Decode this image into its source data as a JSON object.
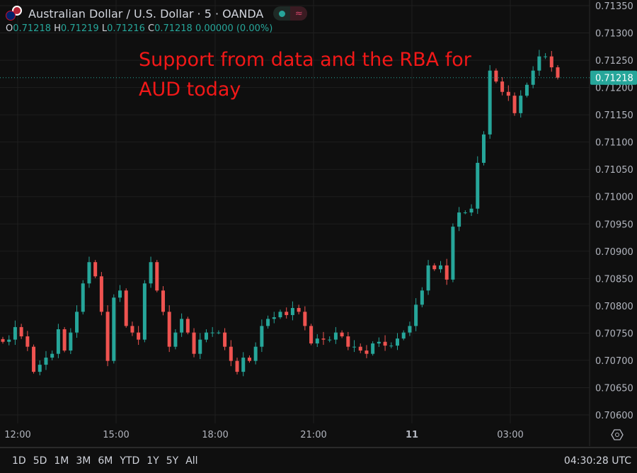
{
  "header": {
    "title": "Australian Dollar / U.S. Dollar · 5 · OANDA",
    "status_icon": "market-open-dot",
    "wave_icon": "≈",
    "ohlc": {
      "o_label": "O",
      "o": "0.71218",
      "h_label": "H",
      "h": "0.71219",
      "l_label": "L",
      "l": "0.71216",
      "c_label": "C",
      "c": "0.71218",
      "change": "0.00000 (0.00%)"
    }
  },
  "annotation": {
    "line1": "Support from data and the RBA for",
    "line2": "AUD today"
  },
  "colors": {
    "up": "#26a69a",
    "down": "#ef5350",
    "background": "#0f0f0f",
    "grid": "#1f1f1f",
    "annotation": "#f21818"
  },
  "chart_data": {
    "type": "candlestick",
    "symbol": "AUDUSD",
    "interval": "5",
    "ylim": [
      0.706,
      0.7135
    ],
    "price_ticks": [
      "0.71350",
      "0.71300",
      "0.71250",
      "0.71200",
      "0.71150",
      "0.71100",
      "0.71050",
      "0.71000",
      "0.70950",
      "0.70900",
      "0.70850",
      "0.70800",
      "0.70750",
      "0.70700",
      "0.70650",
      "0.70600"
    ],
    "time_ticks": [
      "12:00",
      "15:00",
      "18:00",
      "21:00",
      "11",
      "03:00"
    ],
    "last_price": "0.71218",
    "closes": [
      0.70734,
      0.70738,
      0.70761,
      0.70744,
      0.70725,
      0.70679,
      0.70692,
      0.70705,
      0.70712,
      0.70757,
      0.70718,
      0.70751,
      0.70789,
      0.70841,
      0.7088,
      0.70854,
      0.70789,
      0.70699,
      0.70815,
      0.70828,
      0.70763,
      0.70751,
      0.70738,
      0.70841,
      0.7088,
      0.70828,
      0.70789,
      0.70725,
      0.70751,
      0.70776,
      0.70751,
      0.70712,
      0.70738,
      0.70751,
      0.70751,
      0.70751,
      0.70725,
      0.70699,
      0.70679,
      0.70705,
      0.70699,
      0.70725,
      0.70763,
      0.70776,
      0.70779,
      0.70789,
      0.70783,
      0.70796,
      0.70789,
      0.70763,
      0.70731,
      0.7074,
      0.70738,
      0.70738,
      0.70751,
      0.70744,
      0.70725,
      0.70725,
      0.70718,
      0.70712,
      0.70731,
      0.70734,
      0.70727,
      0.70727,
      0.7074,
      0.70751,
      0.70763,
      0.70802,
      0.70828,
      0.70874,
      0.70867,
      0.70874,
      0.70848,
      0.70945,
      0.70971,
      0.70971,
      0.70978,
      0.71062,
      0.71114,
      0.71231,
      0.71211,
      0.71192,
      0.71185,
      0.71153,
      0.71185,
      0.71205,
      0.71231,
      0.71257,
      0.71257,
      0.71237,
      0.71218
    ]
  },
  "bottom": {
    "ranges": [
      "1D",
      "5D",
      "1M",
      "3M",
      "6M",
      "YTD",
      "1Y",
      "5Y",
      "All"
    ],
    "clock": "04:30:28 UTC"
  }
}
